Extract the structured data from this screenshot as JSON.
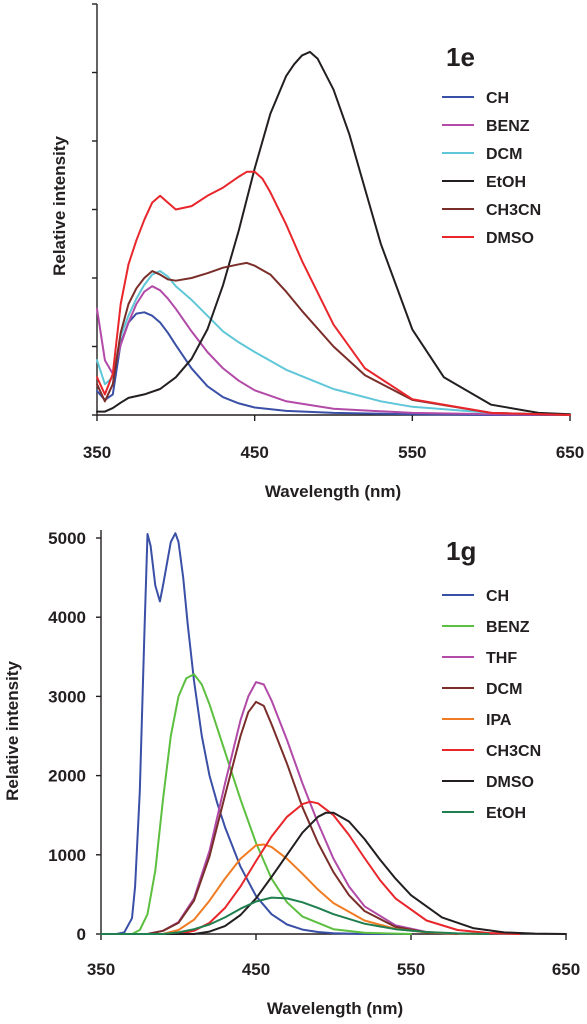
{
  "chart_data": [
    {
      "type": "line",
      "id": "top",
      "title": "1e",
      "xlabel": "Wavelength (nm)",
      "ylabel": "Relative intensity",
      "xlim": [
        350,
        650
      ],
      "ylim": [
        0,
        6
      ],
      "xticks": [
        350,
        450,
        550,
        650
      ],
      "y_tick_labels_shown": false,
      "grid": false,
      "legend_position": "right",
      "series": [
        {
          "name": "CH",
          "color": "#3a4fa6",
          "x": [
            350,
            355,
            360,
            365,
            370,
            375,
            380,
            385,
            390,
            395,
            400,
            410,
            420,
            430,
            440,
            450,
            470,
            500,
            550,
            600,
            650
          ],
          "y": [
            0.35,
            0.22,
            0.3,
            1.05,
            1.35,
            1.48,
            1.5,
            1.45,
            1.35,
            1.2,
            1.02,
            0.68,
            0.42,
            0.26,
            0.17,
            0.11,
            0.06,
            0.03,
            0.01,
            0.0,
            0.0
          ]
        },
        {
          "name": "BENZ",
          "color": "#b24aa8",
          "x": [
            350,
            355,
            360,
            365,
            370,
            375,
            380,
            385,
            390,
            395,
            400,
            410,
            420,
            430,
            440,
            450,
            470,
            500,
            550,
            600,
            650
          ],
          "y": [
            1.55,
            0.8,
            0.6,
            1.02,
            1.35,
            1.62,
            1.8,
            1.88,
            1.82,
            1.7,
            1.55,
            1.22,
            0.92,
            0.68,
            0.5,
            0.36,
            0.2,
            0.09,
            0.03,
            0.01,
            0.0
          ]
        },
        {
          "name": "DCM",
          "color": "#5fc7d8",
          "x": [
            350,
            355,
            360,
            365,
            370,
            375,
            380,
            385,
            390,
            395,
            400,
            410,
            420,
            430,
            440,
            450,
            470,
            500,
            530,
            550,
            600,
            650
          ],
          "y": [
            0.8,
            0.45,
            0.55,
            1.15,
            1.45,
            1.7,
            1.9,
            2.05,
            2.1,
            2.02,
            1.88,
            1.68,
            1.45,
            1.22,
            1.06,
            0.92,
            0.66,
            0.38,
            0.2,
            0.12,
            0.03,
            0.0
          ]
        },
        {
          "name": "EtOH",
          "color": "#231f20",
          "x": [
            350,
            355,
            360,
            365,
            370,
            380,
            390,
            400,
            410,
            420,
            430,
            440,
            450,
            460,
            470,
            475,
            480,
            485,
            490,
            500,
            510,
            520,
            530,
            550,
            570,
            600,
            630,
            650
          ],
          "y": [
            0.05,
            0.05,
            0.1,
            0.18,
            0.25,
            0.3,
            0.38,
            0.55,
            0.82,
            1.25,
            1.9,
            2.7,
            3.6,
            4.4,
            4.95,
            5.12,
            5.25,
            5.3,
            5.2,
            4.75,
            4.1,
            3.3,
            2.5,
            1.25,
            0.55,
            0.15,
            0.03,
            0.01
          ]
        },
        {
          "name": "CH3CN",
          "color": "#7a2e2a",
          "x": [
            350,
            355,
            360,
            365,
            370,
            375,
            380,
            385,
            390,
            395,
            400,
            410,
            420,
            430,
            440,
            445,
            450,
            460,
            470,
            480,
            500,
            520,
            550,
            600,
            650
          ],
          "y": [
            0.45,
            0.2,
            0.45,
            1.2,
            1.62,
            1.85,
            2.0,
            2.1,
            2.05,
            1.98,
            1.96,
            2.0,
            2.07,
            2.15,
            2.2,
            2.22,
            2.18,
            2.05,
            1.8,
            1.52,
            1.0,
            0.58,
            0.22,
            0.03,
            0.0
          ]
        },
        {
          "name": "DMSO",
          "color": "#e8262b",
          "x": [
            350,
            355,
            360,
            365,
            370,
            375,
            380,
            385,
            390,
            395,
            400,
            410,
            420,
            430,
            440,
            445,
            450,
            455,
            460,
            470,
            480,
            500,
            520,
            550,
            600,
            650
          ],
          "y": [
            0.55,
            0.3,
            0.6,
            1.62,
            2.2,
            2.55,
            2.85,
            3.1,
            3.2,
            3.1,
            3.0,
            3.05,
            3.2,
            3.32,
            3.48,
            3.55,
            3.55,
            3.45,
            3.25,
            2.78,
            2.25,
            1.32,
            0.68,
            0.23,
            0.03,
            0.0
          ]
        }
      ]
    },
    {
      "type": "line",
      "id": "bottom",
      "title": "1g",
      "xlabel": "Wavelength (nm)",
      "ylabel": "Relative intensity",
      "xlim": [
        350,
        650
      ],
      "ylim": [
        0,
        5000
      ],
      "xticks": [
        350,
        450,
        550,
        650
      ],
      "yticks": [
        0,
        1000,
        2000,
        3000,
        4000,
        5000
      ],
      "grid": false,
      "legend_position": "right",
      "series": [
        {
          "name": "CH",
          "color": "#3a4fa6",
          "x": [
            350,
            360,
            365,
            370,
            372,
            375,
            378,
            380,
            382,
            385,
            388,
            390,
            395,
            398,
            400,
            403,
            406,
            410,
            415,
            420,
            425,
            430,
            440,
            450,
            460,
            470,
            480,
            490,
            500,
            520,
            550
          ],
          "y": [
            0,
            0,
            20,
            200,
            600,
            1800,
            3800,
            5050,
            4900,
            4400,
            4200,
            4400,
            4950,
            5060,
            4950,
            4500,
            3900,
            3200,
            2500,
            2000,
            1650,
            1350,
            850,
            480,
            250,
            120,
            55,
            25,
            10,
            0,
            0
          ]
        },
        {
          "name": "BENZ",
          "color": "#5cbf3f",
          "x": [
            350,
            370,
            375,
            380,
            385,
            390,
            395,
            400,
            405,
            410,
            415,
            420,
            430,
            440,
            450,
            460,
            470,
            480,
            500,
            520,
            550
          ],
          "y": [
            0,
            0,
            50,
            250,
            800,
            1700,
            2500,
            3000,
            3230,
            3280,
            3150,
            2900,
            2300,
            1700,
            1150,
            700,
            400,
            220,
            60,
            15,
            0
          ]
        },
        {
          "name": "THF",
          "color": "#b24aa8",
          "x": [
            350,
            380,
            390,
            400,
            410,
            420,
            430,
            440,
            445,
            450,
            455,
            460,
            470,
            480,
            490,
            500,
            510,
            520,
            540,
            560,
            580
          ],
          "y": [
            0,
            0,
            40,
            150,
            450,
            1050,
            1900,
            2700,
            3000,
            3180,
            3150,
            2950,
            2450,
            1900,
            1400,
            950,
            600,
            350,
            110,
            25,
            0
          ]
        },
        {
          "name": "DCM",
          "color": "#7a2e2a",
          "x": [
            350,
            380,
            390,
            400,
            410,
            420,
            430,
            440,
            445,
            450,
            455,
            460,
            470,
            480,
            490,
            500,
            510,
            520,
            540,
            560,
            580
          ],
          "y": [
            0,
            0,
            40,
            140,
            420,
            980,
            1750,
            2500,
            2800,
            2930,
            2880,
            2650,
            2150,
            1600,
            1150,
            780,
            490,
            290,
            90,
            20,
            0
          ]
        },
        {
          "name": "IPA",
          "color": "#f07b23",
          "x": [
            350,
            390,
            400,
            410,
            420,
            430,
            440,
            450,
            455,
            460,
            470,
            480,
            490,
            500,
            520,
            540,
            560,
            580,
            600
          ],
          "y": [
            0,
            0,
            50,
            180,
            420,
            700,
            950,
            1120,
            1130,
            1100,
            950,
            760,
            560,
            390,
            170,
            65,
            20,
            5,
            0
          ]
        },
        {
          "name": "CH3CN",
          "color": "#e8262b",
          "x": [
            350,
            400,
            410,
            420,
            430,
            440,
            450,
            460,
            470,
            480,
            485,
            490,
            500,
            510,
            520,
            530,
            540,
            560,
            580,
            600,
            620
          ],
          "y": [
            0,
            0,
            40,
            140,
            330,
            600,
            920,
            1230,
            1480,
            1640,
            1670,
            1650,
            1500,
            1250,
            960,
            680,
            450,
            170,
            50,
            12,
            0
          ]
        },
        {
          "name": "DMSO",
          "color": "#231f20",
          "x": [
            350,
            410,
            420,
            430,
            440,
            450,
            460,
            470,
            480,
            490,
            495,
            500,
            510,
            520,
            530,
            540,
            550,
            570,
            590,
            610,
            630,
            650
          ],
          "y": [
            0,
            0,
            30,
            100,
            240,
            450,
            720,
            1000,
            1280,
            1480,
            1530,
            1530,
            1420,
            1200,
            940,
            700,
            490,
            210,
            75,
            20,
            5,
            0
          ]
        },
        {
          "name": "EtOH",
          "color": "#1f7f4f",
          "x": [
            350,
            390,
            400,
            410,
            420,
            430,
            440,
            450,
            460,
            470,
            480,
            490,
            500,
            520,
            540,
            560,
            580,
            600
          ],
          "y": [
            0,
            0,
            20,
            60,
            120,
            210,
            320,
            410,
            460,
            450,
            400,
            330,
            250,
            130,
            60,
            25,
            8,
            0
          ]
        }
      ]
    }
  ]
}
